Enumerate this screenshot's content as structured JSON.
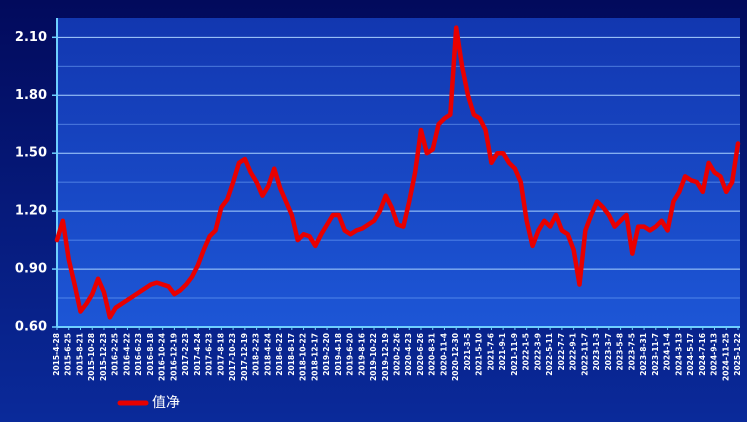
{
  "chart_data": {
    "type": "line",
    "categories": [
      "2015-4-28",
      null,
      "2015-6-25",
      null,
      "2015-8-21",
      null,
      "2015-10-28",
      null,
      "2015-12-23",
      null,
      "2016-2-25",
      null,
      "2016-4-22",
      null,
      "2016-6-23",
      null,
      "2016-8-18",
      null,
      "2016-10-24",
      null,
      "2016-12-19",
      null,
      "2017-2-23",
      null,
      "2017-4-24",
      null,
      "2017-6-23",
      null,
      "2017-8-18",
      null,
      "2017-10-23",
      null,
      "2017-12-19",
      null,
      "2018-2-23",
      null,
      "2018-4-24",
      null,
      "2018-6-22",
      null,
      "2018-8-17",
      null,
      "2018-10-22",
      null,
      "2018-12-17",
      null,
      "2019-2-20",
      null,
      "2019-4-18",
      null,
      "2019-6-20",
      null,
      "2019-8-16",
      null,
      "2019-10-22",
      null,
      "2019-12-19",
      null,
      "2020-2-26",
      null,
      "2020-4-23",
      null,
      "2020-6-26",
      null,
      "2020-8-31",
      null,
      "2020-11-4",
      null,
      "2020-12-30",
      null,
      "2021-3-5",
      null,
      "2021-5-10",
      null,
      "2021-7-6",
      null,
      "2021-9-1",
      null,
      "2021-11-9",
      null,
      "2022-1-5",
      null,
      "2022-3-9",
      null,
      "2022-5-11",
      null,
      "2022-7-7",
      null,
      "2022-9-1",
      null,
      "2022-11-7",
      null,
      "2023-1-3",
      null,
      "2023-3-7",
      null,
      "2023-5-8",
      null,
      "2023-7-5",
      null,
      "2023-8-31",
      null,
      "2023-11-7",
      null,
      "2024-1-4",
      null,
      "2024-3-13",
      null,
      "2024-5-17",
      null,
      "2024-7-16",
      null,
      "2024-9-13",
      null,
      "2024-11-25",
      null,
      "2025-1-22"
    ],
    "series": [
      {
        "name": "值净",
        "color": "#e80000",
        "values": [
          1.05,
          1.15,
          0.95,
          0.82,
          0.68,
          0.72,
          0.77,
          0.85,
          0.78,
          0.65,
          0.7,
          0.72,
          0.74,
          0.76,
          0.78,
          0.8,
          0.82,
          0.83,
          0.82,
          0.81,
          0.77,
          0.79,
          0.82,
          0.86,
          0.92,
          1.0,
          1.07,
          1.1,
          1.22,
          1.26,
          1.35,
          1.45,
          1.47,
          1.4,
          1.35,
          1.28,
          1.33,
          1.42,
          1.32,
          1.25,
          1.18,
          1.05,
          1.08,
          1.07,
          1.02,
          1.08,
          1.13,
          1.18,
          1.18,
          1.1,
          1.08,
          1.1,
          1.11,
          1.13,
          1.15,
          1.2,
          1.28,
          1.22,
          1.13,
          1.12,
          1.25,
          1.4,
          1.62,
          1.5,
          1.52,
          1.65,
          1.68,
          1.7,
          2.15,
          1.95,
          1.8,
          1.7,
          1.68,
          1.62,
          1.45,
          1.5,
          1.5,
          1.45,
          1.42,
          1.35,
          1.15,
          1.02,
          1.1,
          1.15,
          1.12,
          1.18,
          1.1,
          1.08,
          1.0,
          0.82,
          1.1,
          1.18,
          1.25,
          1.22,
          1.18,
          1.12,
          1.15,
          1.18,
          0.98,
          1.12,
          1.12,
          1.1,
          1.12,
          1.15,
          1.1,
          1.25,
          1.3,
          1.38,
          1.36,
          1.35,
          1.3,
          1.45,
          1.4,
          1.38,
          1.3,
          1.35,
          1.55
        ]
      }
    ],
    "ylim": [
      0.6,
      2.2
    ],
    "yticks": [
      {
        "value": 0.6,
        "label": "0.60"
      },
      {
        "value": 0.9,
        "label": "0.90"
      },
      {
        "value": 1.2,
        "label": "1.20"
      },
      {
        "value": 1.5,
        "label": "1.50"
      },
      {
        "value": 1.8,
        "label": "1.80"
      },
      {
        "value": 2.1,
        "label": "2.10"
      }
    ],
    "minor_yticks": [
      0.75,
      1.05,
      1.35,
      1.65,
      1.95
    ],
    "grid": true,
    "legend": "bottom-left"
  }
}
